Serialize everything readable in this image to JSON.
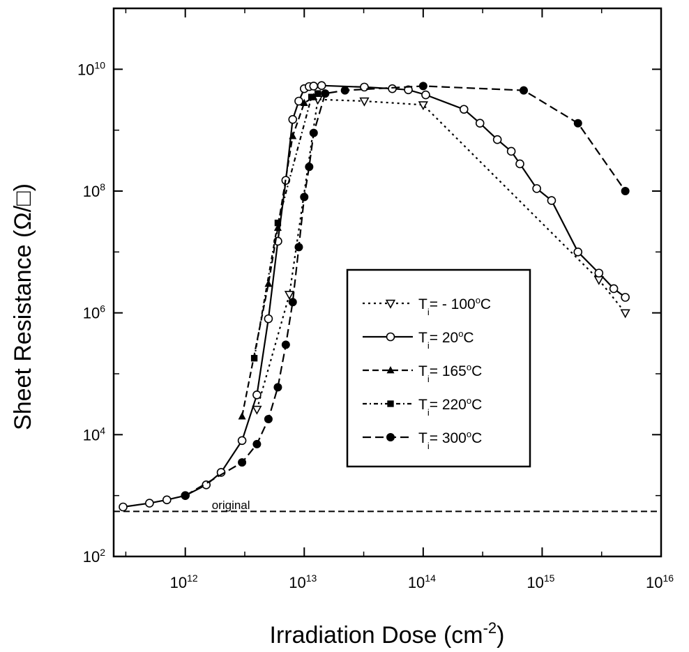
{
  "chart_data": {
    "type": "line",
    "title": "",
    "xlabel": "Irradiation Dose (cm-2)",
    "xlabel_base": "Irradiation Dose (cm",
    "xlabel_exp": "-2",
    "xlabel_end": ")",
    "ylabel": "Sheet Resistance (Ω/□)",
    "x_scale": "log",
    "y_scale": "log",
    "xlim": [
      250000000000.0,
      1e+16
    ],
    "ylim": [
      100,
      100000000000.0
    ],
    "grid": false,
    "legend_position": "center-right",
    "x_ticks": [
      {
        "value": 1000000000000.0,
        "base": "10",
        "exp": "12"
      },
      {
        "value": 10000000000000.0,
        "base": "10",
        "exp": "13"
      },
      {
        "value": 100000000000000.0,
        "base": "10",
        "exp": "14"
      },
      {
        "value": 1000000000000000.0,
        "base": "10",
        "exp": "15"
      },
      {
        "value": 1e+16,
        "base": "10",
        "exp": "16"
      }
    ],
    "y_ticks": [
      {
        "value": 100,
        "base": "10",
        "exp": "2"
      },
      {
        "value": 10000,
        "base": "10",
        "exp": "4"
      },
      {
        "value": 1000000,
        "base": "10",
        "exp": "6"
      },
      {
        "value": 100000000,
        "base": "10",
        "exp": "8"
      },
      {
        "value": 10000000000,
        "base": "10",
        "exp": "10"
      }
    ],
    "annotations": [
      {
        "text": "original",
        "x": 1500000000000.0,
        "y": 700
      }
    ],
    "reference_line": {
      "label": "original",
      "y": 550
    },
    "series": [
      {
        "name": "Ti = - 100oC",
        "label_prefix": "T",
        "label_sub": "i",
        "label_eq": "= - 100",
        "label_unit_sup": "o",
        "label_unit": "C",
        "marker": "triangle-down-open",
        "dash": "3,5",
        "x": [
          4000000000000.0,
          7500000000000.0,
          13000000000000.0,
          32000000000000.0,
          100000000000000.0,
          3000000000000000.0,
          5000000000000000.0
        ],
        "y": [
          26000,
          2000000,
          3200000000,
          3000000000,
          2600000000,
          3500000,
          1000000
        ]
      },
      {
        "name": "Ti = 20oC",
        "label_prefix": "T",
        "label_sub": "i",
        "label_eq": "=    20",
        "label_unit_sup": "o",
        "label_unit": "C",
        "marker": "circle-open",
        "dash": "",
        "x": [
          300000000000.0,
          500000000000.0,
          700000000000.0,
          1000000000000.0,
          1500000000000.0,
          2000000000000.0,
          3000000000000.0,
          4000000000000.0,
          5000000000000.0,
          6000000000000.0,
          7000000000000.0,
          8000000000000.0,
          9000000000000.0,
          10000000000000.0,
          11000000000000.0,
          12000000000000.0,
          14000000000000.0,
          32000000000000.0,
          55000000000000.0,
          75000000000000.0,
          105000000000000.0,
          220000000000000.0,
          300000000000000.0,
          420000000000000.0,
          550000000000000.0,
          650000000000000.0,
          900000000000000.0,
          1200000000000000.0,
          2000000000000000.0,
          3000000000000000.0,
          4000000000000000.0,
          5000000000000000.0
        ],
        "y": [
          650,
          750,
          850,
          1000,
          1500,
          2400,
          8000,
          45000,
          800000,
          15000000,
          150000000,
          1500000000,
          3000000000,
          4800000000,
          5200000000,
          5300000000,
          5400000000,
          5100000000,
          4800000000,
          4600000000,
          3800000000,
          2200000000,
          1300000000,
          700000000,
          450000000,
          280000000,
          110000000,
          70000000,
          10000000,
          4500000,
          2500000,
          1800000
        ]
      },
      {
        "name": "Ti = 165oC",
        "label_prefix": "T",
        "label_sub": "i",
        "label_eq": "= 165",
        "label_unit_sup": "o",
        "label_unit": "C",
        "marker": "triangle-up-filled",
        "dash": "9,5",
        "x": [
          3000000000000.0,
          5000000000000.0,
          6000000000000.0,
          8000000000000.0,
          10000000000000.0,
          12000000000000.0
        ],
        "y": [
          20000,
          3000000,
          25000000,
          800000000,
          2800000000,
          3500000000
        ]
      },
      {
        "name": "Ti = 220oC",
        "label_prefix": "T",
        "label_sub": "i",
        "label_eq": "= 220",
        "label_unit_sup": "o",
        "label_unit": "C",
        "marker": "square-filled",
        "dash": "6,4,2,4",
        "x": [
          3800000000000.0,
          6000000000000.0,
          11500000000000.0,
          13000000000000.0
        ],
        "y": [
          180000,
          30000000,
          3500000000,
          4000000000
        ]
      },
      {
        "name": "Ti = 300oC",
        "label_prefix": "T",
        "label_sub": "i",
        "label_eq": "= 300",
        "label_unit_sup": "o",
        "label_unit": "C",
        "marker": "circle-filled",
        "dash": "12,6",
        "x": [
          1000000000000.0,
          3000000000000.0,
          4000000000000.0,
          5000000000000.0,
          6000000000000.0,
          7000000000000.0,
          8000000000000.0,
          9000000000000.0,
          10000000000000.0,
          11000000000000.0,
          12000000000000.0,
          15000000000000.0,
          22000000000000.0,
          100000000000000.0,
          700000000000000.0,
          2000000000000000.0,
          5000000000000000.0
        ],
        "y": [
          1000,
          3500,
          7000,
          18000,
          60000,
          300000,
          1500000,
          12000000,
          80000000,
          250000000,
          900000000,
          4000000000,
          4500000000,
          5300000000,
          4500000000,
          1300000000,
          100000000
        ]
      }
    ]
  }
}
